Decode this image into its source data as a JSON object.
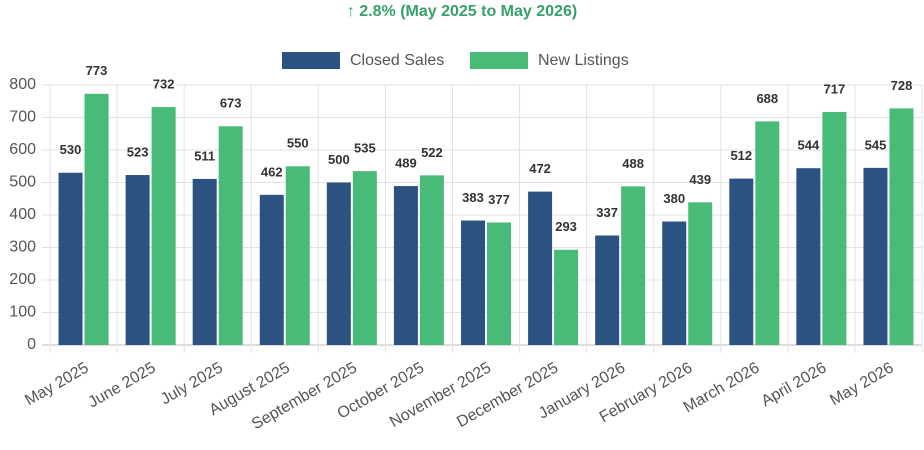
{
  "chart_data": {
    "type": "bar",
    "title": "↑ 2.8% (May 2025 to May 2026)",
    "categories": [
      "May 2025",
      "June 2025",
      "July 2025",
      "August 2025",
      "September 2025",
      "October 2025",
      "November 2025",
      "December 2025",
      "January 2026",
      "February 2026",
      "March 2026",
      "April 2026",
      "May 2026"
    ],
    "series": [
      {
        "name": "Closed Sales",
        "color": "#2c5282",
        "values": [
          530,
          523,
          511,
          462,
          500,
          489,
          383,
          472,
          337,
          380,
          512,
          544,
          545
        ]
      },
      {
        "name": "New Listings",
        "color": "#48bb78",
        "values": [
          773,
          732,
          673,
          550,
          535,
          522,
          377,
          293,
          488,
          439,
          688,
          717,
          728
        ]
      }
    ],
    "ylim": [
      0,
      800
    ],
    "yticks": [
      0,
      100,
      200,
      300,
      400,
      500,
      600,
      700,
      800
    ],
    "grid": true,
    "legend": "top"
  }
}
